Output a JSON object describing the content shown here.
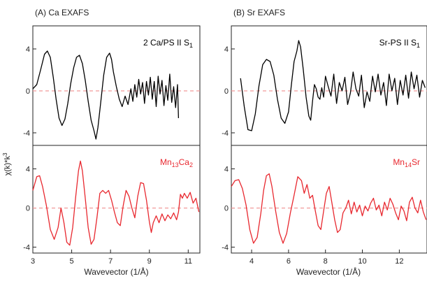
{
  "figure": {
    "y_axis_label": "χ(k)*k",
    "y_axis_label_exponent": "3"
  },
  "chart_data": [
    {
      "type": "line",
      "panel_title": "(A) Ca EXAFS",
      "xlabel": "Wavevector (1/Å)",
      "xlim": [
        3,
        11.6
      ],
      "xticks": [
        3,
        5,
        7,
        9,
        11
      ],
      "colors": {
        "top": "#000000",
        "bottom": "#e8282f",
        "zero_line": "#f29a9a"
      },
      "top": {
        "label_main": "2 Ca/PS II S",
        "label_sub": "1",
        "ylim": [
          -5.2,
          6.2
        ],
        "yticks": [
          -4,
          0,
          4
        ],
        "series": [
          {
            "x": [
              3.0,
              3.2,
              3.4,
              3.6,
              3.75,
              3.9,
              4.05,
              4.2,
              4.35,
              4.5,
              4.65,
              4.8,
              4.95,
              5.1,
              5.25,
              5.4,
              5.55,
              5.7,
              5.85,
              6.0,
              6.15,
              6.25,
              6.35,
              6.5,
              6.65,
              6.8,
              6.95,
              7.05,
              7.15,
              7.3,
              7.45,
              7.6,
              7.75,
              7.9,
              8.05,
              8.15,
              8.25,
              8.35,
              8.45,
              8.55,
              8.65,
              8.75,
              8.85,
              8.95,
              9.05,
              9.15,
              9.25,
              9.35,
              9.45,
              9.55,
              9.65,
              9.75,
              9.85,
              9.95,
              10.05,
              10.15,
              10.25,
              10.35,
              10.45,
              10.5
            ],
            "y": [
              0.2,
              0.6,
              2.0,
              3.5,
              3.8,
              3.2,
              1.3,
              -0.8,
              -2.6,
              -3.3,
              -2.7,
              -1.2,
              0.7,
              2.2,
              3.2,
              3.4,
              2.6,
              1.0,
              -1.0,
              -2.8,
              -3.8,
              -4.6,
              -3.5,
              -1.0,
              1.5,
              3.2,
              3.6,
              3.0,
              1.8,
              0.4,
              -0.8,
              -1.5,
              -0.5,
              -1.3,
              0.2,
              -1.0,
              0.6,
              -0.6,
              1.1,
              -0.3,
              0.8,
              -1.2,
              0.9,
              -0.4,
              1.3,
              -0.8,
              0.9,
              -1.5,
              1.4,
              -0.3,
              1.0,
              -1.4,
              0.5,
              -0.9,
              1.6,
              -1.1,
              0.4,
              -1.6,
              0.6,
              -2.6
            ]
          }
        ]
      },
      "bottom": {
        "label_main": "Mn",
        "label_sub1": "13",
        "label_mid": "Ca",
        "label_sub2": "2",
        "ylim": [
          -4.6,
          6.4
        ],
        "yticks": [
          -4,
          0,
          4
        ],
        "series": [
          {
            "x": [
              3.0,
              3.2,
              3.35,
              3.5,
              3.7,
              3.9,
              4.1,
              4.3,
              4.45,
              4.6,
              4.75,
              4.9,
              5.05,
              5.2,
              5.35,
              5.45,
              5.55,
              5.7,
              5.85,
              6.0,
              6.15,
              6.3,
              6.45,
              6.6,
              6.75,
              6.9,
              7.05,
              7.2,
              7.35,
              7.5,
              7.65,
              7.8,
              7.95,
              8.1,
              8.25,
              8.4,
              8.55,
              8.7,
              8.85,
              9.0,
              9.1,
              9.2,
              9.35,
              9.5,
              9.65,
              9.8,
              9.95,
              10.1,
              10.25,
              10.4,
              10.5,
              10.6,
              10.7,
              10.8,
              10.95,
              11.1,
              11.25,
              11.4,
              11.55
            ],
            "y": [
              1.8,
              3.2,
              3.3,
              2.2,
              0.2,
              -2.2,
              -3.2,
              -2.0,
              0.0,
              -1.5,
              -3.5,
              -3.8,
              -2.0,
              1.0,
              3.8,
              4.8,
              3.8,
              1.0,
              -2.0,
              -3.7,
              -3.2,
              -1.0,
              1.5,
              1.8,
              1.5,
              1.8,
              0.8,
              -0.4,
              -1.5,
              -1.8,
              0.2,
              1.8,
              1.2,
              0.0,
              -1.0,
              1.2,
              2.6,
              2.5,
              0.8,
              -1.4,
              -2.5,
              -1.5,
              -0.8,
              -1.5,
              -0.6,
              -1.3,
              -0.7,
              -1.1,
              -0.5,
              -1.2,
              -0.4,
              1.4,
              1.0,
              1.5,
              1.0,
              1.6,
              0.5,
              1.0,
              -0.4
            ]
          }
        ]
      }
    },
    {
      "type": "line",
      "panel_title": "(B) Sr EXAFS",
      "xlabel": "Wavevector (1/Å)",
      "xlim": [
        2.9,
        13.5
      ],
      "xticks": [
        4,
        6,
        8,
        10,
        12
      ],
      "colors": {
        "top": "#000000",
        "bottom": "#e8282f",
        "zero_line": "#f29a9a"
      },
      "top": {
        "label_main": "Sr-PS II  S",
        "label_sub": "1",
        "ylim": [
          -5.2,
          6.2
        ],
        "yticks": [
          -4,
          0,
          4
        ],
        "series": [
          {
            "x": [
              3.4,
              3.6,
              3.8,
              4.0,
              4.2,
              4.4,
              4.6,
              4.8,
              5.0,
              5.2,
              5.4,
              5.6,
              5.8,
              6.0,
              6.15,
              6.3,
              6.45,
              6.55,
              6.65,
              6.8,
              6.95,
              7.1,
              7.2,
              7.3,
              7.4,
              7.5,
              7.6,
              7.7,
              7.8,
              7.9,
              8.0,
              8.15,
              8.3,
              8.45,
              8.6,
              8.75,
              8.9,
              9.05,
              9.2,
              9.35,
              9.5,
              9.65,
              9.8,
              9.95,
              10.1,
              10.25,
              10.4,
              10.55,
              10.7,
              10.85,
              11.0,
              11.15,
              11.3,
              11.45,
              11.6,
              11.75,
              11.9,
              12.05,
              12.2,
              12.35,
              12.5,
              12.65,
              12.8,
              12.95,
              13.1,
              13.25,
              13.4
            ],
            "y": [
              1.2,
              -1.5,
              -3.7,
              -3.8,
              -2.2,
              0.5,
              2.5,
              3.0,
              2.8,
              1.5,
              -0.8,
              -2.6,
              -3.1,
              -2.0,
              0.5,
              2.8,
              3.8,
              4.8,
              4.2,
              2.0,
              -0.6,
              -2.4,
              -2.8,
              -1.0,
              0.6,
              0.2,
              -0.6,
              -0.8,
              0.3,
              -0.6,
              1.4,
              0.4,
              -0.5,
              1.6,
              -1.2,
              0.8,
              0.0,
              1.3,
              -1.3,
              -0.2,
              1.8,
              0.2,
              -0.5,
              1.5,
              -1.6,
              -0.1,
              -1.0,
              1.4,
              -0.1,
              1.6,
              -0.4,
              0.8,
              -1.4,
              1.6,
              0.0,
              1.2,
              -1.3,
              1.0,
              -0.4,
              1.5,
              -0.7,
              1.8,
              0.2,
              1.5,
              -0.6,
              1.0,
              0.3
            ]
          }
        ]
      },
      "bottom": {
        "label_main": "Mn",
        "label_sub1": "14",
        "label_mid": "Sr",
        "label_sub2": "",
        "ylim": [
          -4.6,
          6.4
        ],
        "yticks": [
          -4,
          0,
          4
        ],
        "series": [
          {
            "x": [
              2.9,
              3.1,
              3.3,
              3.5,
              3.7,
              3.9,
              4.1,
              4.3,
              4.5,
              4.65,
              4.8,
              4.95,
              5.1,
              5.3,
              5.5,
              5.7,
              5.9,
              6.1,
              6.3,
              6.5,
              6.7,
              6.85,
              7.0,
              7.15,
              7.3,
              7.45,
              7.6,
              7.75,
              7.9,
              8.05,
              8.2,
              8.35,
              8.5,
              8.65,
              8.8,
              8.95,
              9.1,
              9.25,
              9.4,
              9.55,
              9.7,
              9.85,
              10.0,
              10.15,
              10.3,
              10.45,
              10.6,
              10.75,
              10.9,
              11.05,
              11.2,
              11.35,
              11.5,
              11.65,
              11.8,
              11.95,
              12.1,
              12.25,
              12.4,
              12.55,
              12.7,
              12.85,
              13.0,
              13.15,
              13.3,
              13.45
            ],
            "y": [
              2.2,
              2.8,
              2.9,
              2.0,
              0.3,
              -2.2,
              -3.6,
              -3.0,
              -0.5,
              1.8,
              3.3,
              3.5,
              2.2,
              -0.3,
              -2.5,
              -3.6,
              -2.6,
              -0.5,
              1.3,
              3.2,
              2.8,
              1.5,
              2.4,
              1.0,
              1.3,
              -0.3,
              -1.8,
              -2.2,
              -0.3,
              1.5,
              2.2,
              0.5,
              -1.2,
              -2.5,
              -2.2,
              -0.5,
              0.0,
              0.8,
              -0.6,
              0.6,
              -0.4,
              0.3,
              -0.8,
              0.2,
              -0.3,
              0.5,
              1.0,
              -0.2,
              0.3,
              -0.8,
              0.6,
              -0.2,
              1.0,
              0.4,
              -0.5,
              -1.2,
              0.2,
              -0.3,
              -1.3,
              0.6,
              1.1,
              0.0,
              -0.5,
              0.8,
              -0.4,
              -1.2
            ]
          }
        ]
      }
    }
  ]
}
